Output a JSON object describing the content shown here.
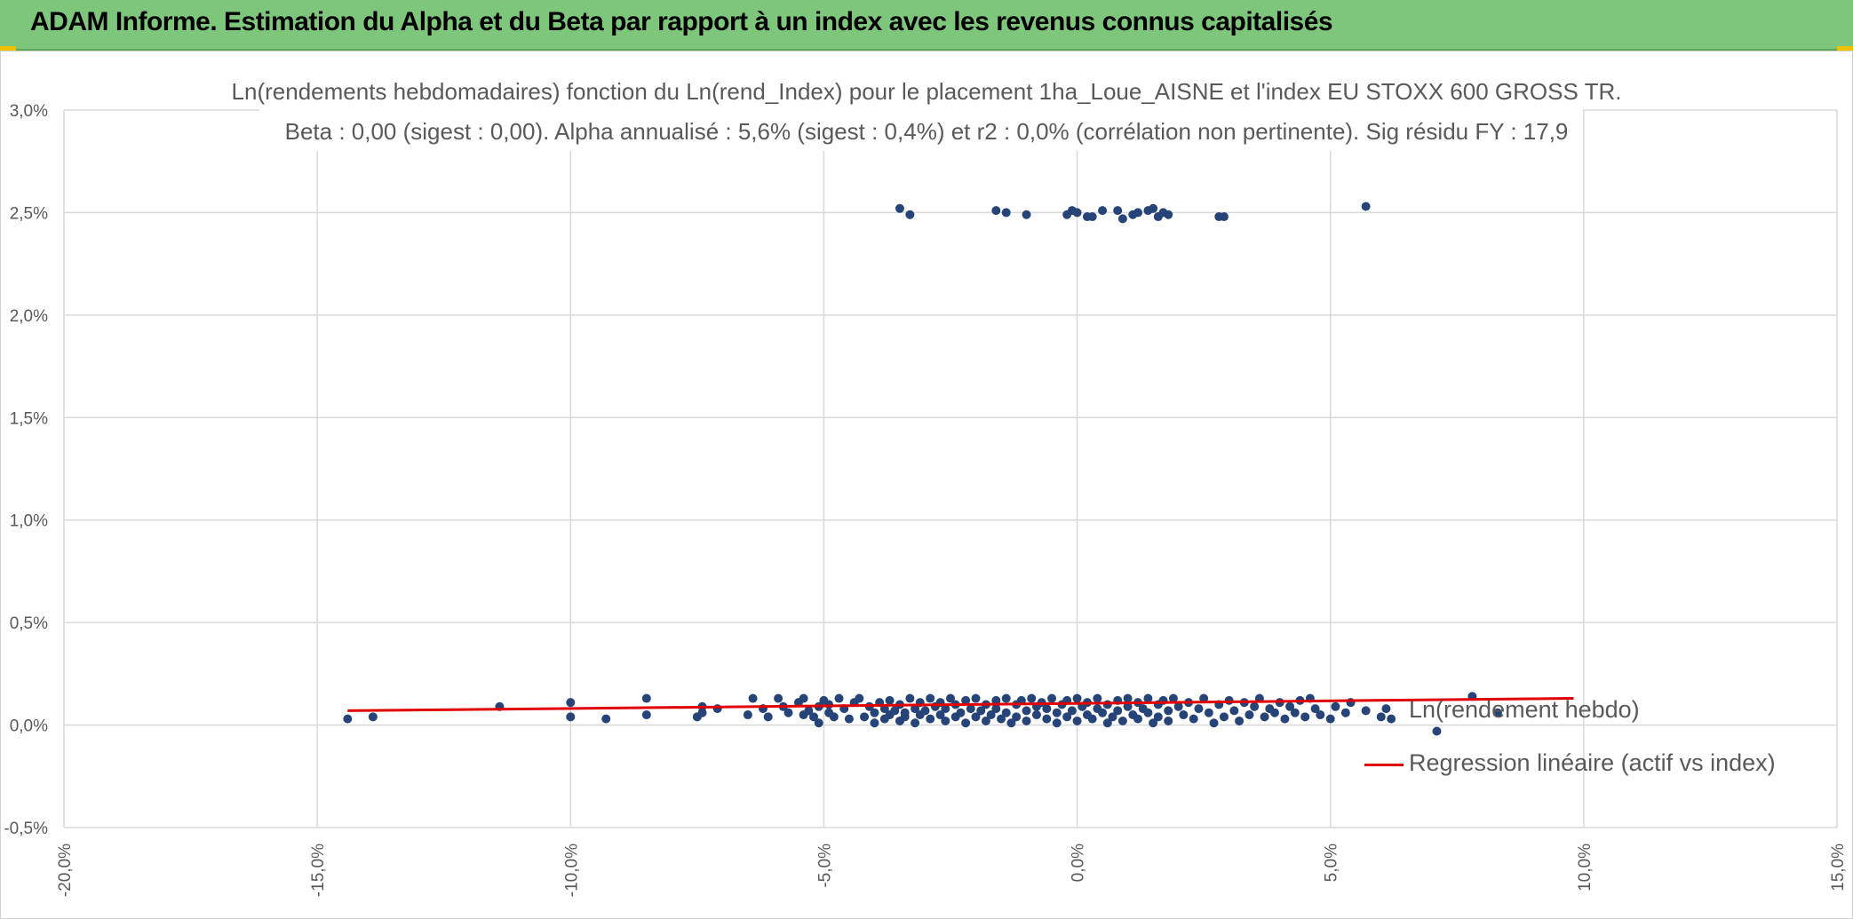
{
  "header": {
    "title": "ADAM Informe. Estimation du Alpha et du Beta par rapport à un index avec les revenus connus capitalisés"
  },
  "colors": {
    "header_bg": "#7dc67b",
    "points": "#264478",
    "regression": "#e00000",
    "grid": "#d9d9d9",
    "text": "#595959"
  },
  "chart_data": {
    "type": "scatter",
    "title": "Ln(rendements hebdomadaires) fonction du Ln(rend_Index) pour le placement 1ha_Loue_AISNE et l'index EU STOXX 600 GROSS TR.",
    "subtitle": "Beta : 0,00 (sigest : 0,00). Alpha annualisé : 5,6% (sigest : 0,4%) et r2 : 0,0% (corrélation non pertinente). Sig résidu FY : 17,9",
    "xlabel": "",
    "ylabel": "",
    "xlim": [
      -0.2,
      0.15
    ],
    "ylim": [
      -0.005,
      0.03
    ],
    "x_ticks": [
      "-20,0%",
      "-15,0%",
      "-10,0%",
      "-5,0%",
      "0,0%",
      "5,0%",
      "10,0%",
      "15,0%"
    ],
    "x_tick_values": [
      -0.2,
      -0.15,
      -0.1,
      -0.05,
      0.0,
      0.05,
      0.1,
      0.15
    ],
    "y_ticks": [
      "-0,5%",
      "0,0%",
      "0,5%",
      "1,0%",
      "1,5%",
      "2,0%",
      "2,5%",
      "3,0%"
    ],
    "y_tick_values": [
      -0.005,
      0.0,
      0.005,
      0.01,
      0.015,
      0.02,
      0.025,
      0.03
    ],
    "grid": true,
    "legend_position": "right",
    "series": [
      {
        "name": "Ln(rendement hebdo)",
        "kind": "points",
        "points": [
          [
            -0.144,
            0.0003
          ],
          [
            -0.139,
            0.0004
          ],
          [
            -0.114,
            0.0009
          ],
          [
            -0.1,
            0.0011
          ],
          [
            -0.1,
            0.0004
          ],
          [
            -0.093,
            0.0003
          ],
          [
            -0.085,
            0.0013
          ],
          [
            -0.085,
            0.0005
          ],
          [
            -0.075,
            0.0004
          ],
          [
            -0.074,
            0.0009
          ],
          [
            -0.074,
            0.0006
          ],
          [
            -0.071,
            0.0008
          ],
          [
            -0.065,
            0.0005
          ],
          [
            -0.064,
            0.0013
          ],
          [
            -0.062,
            0.0008
          ],
          [
            -0.061,
            0.0004
          ],
          [
            -0.059,
            0.0013
          ],
          [
            -0.058,
            0.0009
          ],
          [
            -0.057,
            0.0006
          ],
          [
            -0.055,
            0.0011
          ],
          [
            -0.054,
            0.0005
          ],
          [
            -0.054,
            0.0013
          ],
          [
            -0.053,
            0.0007
          ],
          [
            -0.052,
            0.0004
          ],
          [
            -0.051,
            0.0009
          ],
          [
            -0.051,
            0.0001
          ],
          [
            -0.05,
            0.0012
          ],
          [
            -0.049,
            0.0006
          ],
          [
            -0.049,
            0.001
          ],
          [
            -0.048,
            0.0004
          ],
          [
            -0.047,
            0.0013
          ],
          [
            -0.046,
            0.0008
          ],
          [
            -0.045,
            0.0003
          ],
          [
            -0.044,
            0.0011
          ],
          [
            -0.043,
            0.0013
          ],
          [
            -0.042,
            0.0004
          ],
          [
            -0.041,
            0.0009
          ],
          [
            -0.04,
            0.0001
          ],
          [
            -0.04,
            0.0006
          ],
          [
            -0.039,
            0.0011
          ],
          [
            -0.038,
            0.0003
          ],
          [
            -0.038,
            0.0008
          ],
          [
            -0.037,
            0.0005
          ],
          [
            -0.037,
            0.0012
          ],
          [
            -0.036,
            0.0007
          ],
          [
            -0.035,
            0.0002
          ],
          [
            -0.035,
            0.001
          ],
          [
            -0.034,
            0.0006
          ],
          [
            -0.034,
            0.0004
          ],
          [
            -0.033,
            0.0013
          ],
          [
            -0.032,
            0.0008
          ],
          [
            -0.032,
            0.0001
          ],
          [
            -0.031,
            0.0005
          ],
          [
            -0.031,
            0.0011
          ],
          [
            -0.03,
            0.0007
          ],
          [
            -0.029,
            0.0003
          ],
          [
            -0.029,
            0.0013
          ],
          [
            -0.028,
            0.0009
          ],
          [
            -0.027,
            0.0005
          ],
          [
            -0.027,
            0.0011
          ],
          [
            -0.026,
            0.0002
          ],
          [
            -0.026,
            0.0008
          ],
          [
            -0.025,
            0.0013
          ],
          [
            -0.024,
            0.0004
          ],
          [
            -0.024,
            0.001
          ],
          [
            -0.023,
            0.0006
          ],
          [
            -0.022,
            0.0001
          ],
          [
            -0.022,
            0.0012
          ],
          [
            -0.021,
            0.0008
          ],
          [
            -0.02,
            0.0004
          ],
          [
            -0.02,
            0.0013
          ],
          [
            -0.019,
            0.0007
          ],
          [
            -0.018,
            0.0002
          ],
          [
            -0.018,
            0.001
          ],
          [
            -0.017,
            0.0005
          ],
          [
            -0.016,
            0.0012
          ],
          [
            -0.016,
            0.0008
          ],
          [
            -0.015,
            0.0003
          ],
          [
            -0.014,
            0.0013
          ],
          [
            -0.014,
            0.0006
          ],
          [
            -0.013,
            0.0001
          ],
          [
            -0.012,
            0.001
          ],
          [
            -0.012,
            0.0004
          ],
          [
            -0.011,
            0.0012
          ],
          [
            -0.01,
            0.0007
          ],
          [
            -0.01,
            0.0002
          ],
          [
            -0.009,
            0.0013
          ],
          [
            -0.008,
            0.0009
          ],
          [
            -0.008,
            0.0005
          ],
          [
            -0.007,
            0.0011
          ],
          [
            -0.006,
            0.0003
          ],
          [
            -0.006,
            0.0008
          ],
          [
            -0.005,
            0.0013
          ],
          [
            -0.004,
            0.0006
          ],
          [
            -0.004,
            0.0001
          ],
          [
            -0.003,
            0.001
          ],
          [
            -0.002,
            0.0004
          ],
          [
            -0.002,
            0.0012
          ],
          [
            -0.001,
            0.0007
          ],
          [
            0.0,
            0.0002
          ],
          [
            0.0,
            0.0013
          ],
          [
            0.001,
            0.0009
          ],
          [
            0.002,
            0.0005
          ],
          [
            0.002,
            0.0011
          ],
          [
            0.003,
            0.0003
          ],
          [
            0.004,
            0.0008
          ],
          [
            0.004,
            0.0013
          ],
          [
            0.005,
            0.0006
          ],
          [
            0.006,
            0.0001
          ],
          [
            0.006,
            0.001
          ],
          [
            0.007,
            0.0004
          ],
          [
            0.008,
            0.0012
          ],
          [
            0.008,
            0.0007
          ],
          [
            0.009,
            0.0002
          ],
          [
            0.01,
            0.0013
          ],
          [
            0.01,
            0.0009
          ],
          [
            0.011,
            0.0005
          ],
          [
            0.012,
            0.0011
          ],
          [
            0.012,
            0.0003
          ],
          [
            0.013,
            0.0008
          ],
          [
            0.014,
            0.0013
          ],
          [
            0.014,
            0.0006
          ],
          [
            0.015,
            0.0001
          ],
          [
            0.016,
            0.001
          ],
          [
            0.016,
            0.0004
          ],
          [
            0.017,
            0.0012
          ],
          [
            0.018,
            0.0007
          ],
          [
            0.018,
            0.0002
          ],
          [
            0.019,
            0.0013
          ],
          [
            0.02,
            0.0009
          ],
          [
            0.021,
            0.0005
          ],
          [
            0.022,
            0.0011
          ],
          [
            0.023,
            0.0003
          ],
          [
            0.024,
            0.0008
          ],
          [
            0.025,
            0.0013
          ],
          [
            0.026,
            0.0006
          ],
          [
            0.027,
            0.0001
          ],
          [
            0.028,
            0.001
          ],
          [
            0.029,
            0.0004
          ],
          [
            0.03,
            0.0012
          ],
          [
            0.031,
            0.0007
          ],
          [
            0.032,
            0.0002
          ],
          [
            0.033,
            0.0011
          ],
          [
            0.034,
            0.0005
          ],
          [
            0.035,
            0.0009
          ],
          [
            0.036,
            0.0013
          ],
          [
            0.037,
            0.0004
          ],
          [
            0.038,
            0.0008
          ],
          [
            0.039,
            0.0006
          ],
          [
            0.04,
            0.0011
          ],
          [
            0.041,
            0.0003
          ],
          [
            0.042,
            0.0009
          ],
          [
            0.043,
            0.0006
          ],
          [
            0.044,
            0.0012
          ],
          [
            0.045,
            0.0004
          ],
          [
            0.046,
            0.0013
          ],
          [
            0.047,
            0.0008
          ],
          [
            0.048,
            0.0005
          ],
          [
            0.05,
            0.0003
          ],
          [
            0.051,
            0.0009
          ],
          [
            0.053,
            0.0006
          ],
          [
            0.054,
            0.0011
          ],
          [
            0.057,
            0.0007
          ],
          [
            0.06,
            0.0004
          ],
          [
            0.061,
            0.0008
          ],
          [
            0.062,
            0.0003
          ],
          [
            0.071,
            -0.0003
          ],
          [
            0.078,
            0.0014
          ],
          [
            0.083,
            0.0006
          ],
          [
            -0.035,
            0.0252
          ],
          [
            -0.033,
            0.0249
          ],
          [
            -0.016,
            0.0251
          ],
          [
            -0.014,
            0.025
          ],
          [
            -0.01,
            0.0249
          ],
          [
            -0.002,
            0.0249
          ],
          [
            -0.001,
            0.0251
          ],
          [
            0.0,
            0.025
          ],
          [
            0.002,
            0.0248
          ],
          [
            0.003,
            0.0248
          ],
          [
            0.005,
            0.0251
          ],
          [
            0.008,
            0.0251
          ],
          [
            0.009,
            0.0247
          ],
          [
            0.011,
            0.0249
          ],
          [
            0.012,
            0.025
          ],
          [
            0.014,
            0.0251
          ],
          [
            0.015,
            0.0252
          ],
          [
            0.016,
            0.0248
          ],
          [
            0.017,
            0.025
          ],
          [
            0.018,
            0.0249
          ],
          [
            0.028,
            0.0248
          ],
          [
            0.029,
            0.0248
          ],
          [
            0.057,
            0.0253
          ]
        ]
      },
      {
        "name": "Regression linéaire (actif vs index)",
        "kind": "line",
        "points": [
          [
            -0.144,
            0.0007
          ],
          [
            0.098,
            0.0013
          ]
        ]
      }
    ],
    "legend": [
      "Ln(rendement hebdo)",
      "Regression linéaire (actif vs index)"
    ]
  }
}
